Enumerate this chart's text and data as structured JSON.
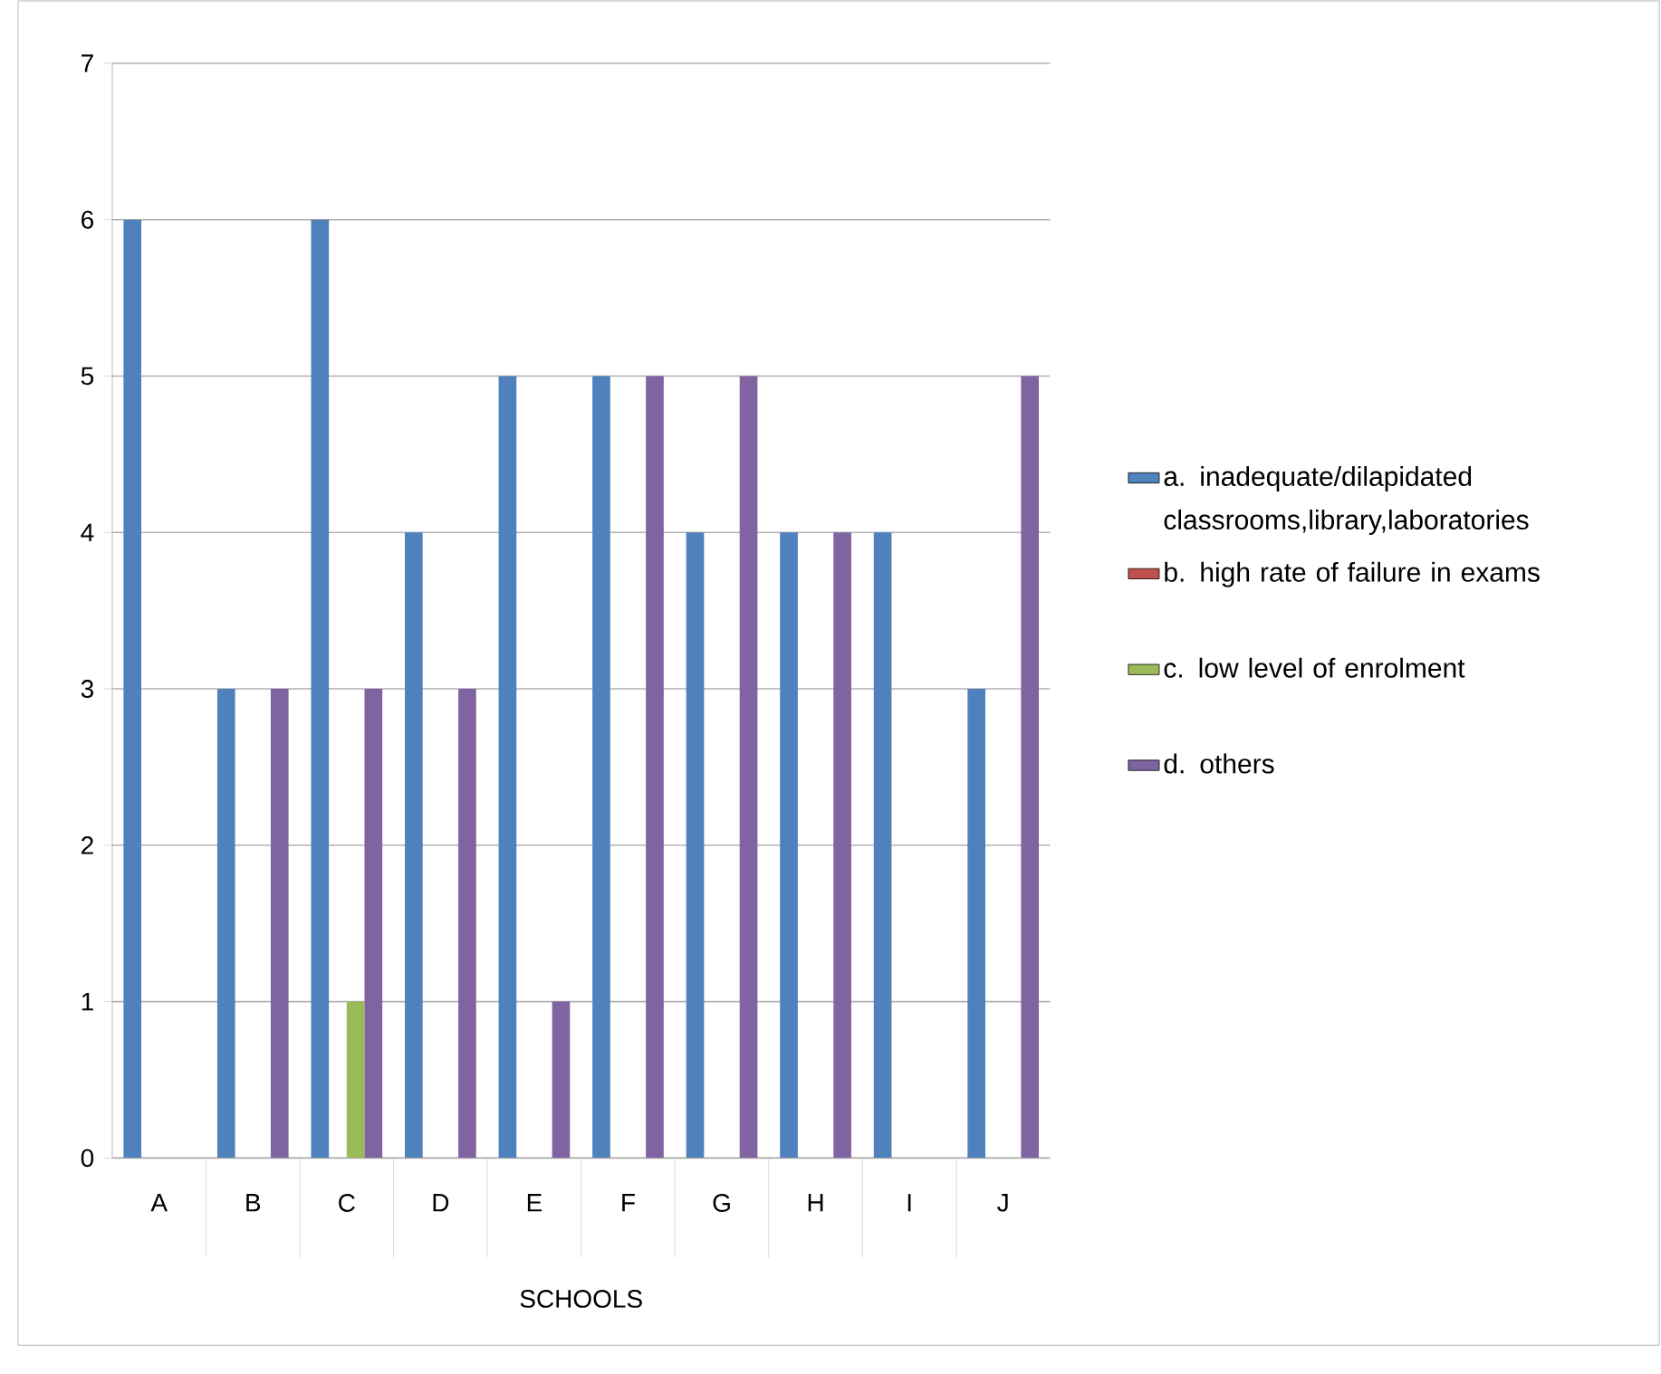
{
  "chart_data": {
    "type": "bar",
    "xlabel": "SCHOOLS",
    "categories": [
      "A",
      "B",
      "C",
      "D",
      "E",
      "F",
      "G",
      "H",
      "I",
      "J"
    ],
    "series": [
      {
        "name": "a. inadequate/dilapidated classrooms,library,laboratories",
        "color": "#4f81bd",
        "values": [
          6,
          3,
          6,
          4,
          5,
          5,
          4,
          4,
          4,
          3
        ]
      },
      {
        "name": "b. high rate of failure in exams",
        "color": "#c0504d",
        "values": [
          0,
          0,
          0,
          0,
          0,
          0,
          0,
          0,
          0,
          0
        ]
      },
      {
        "name": "c. low level of enrolment",
        "color": "#9bbb59",
        "values": [
          0,
          0,
          1,
          0,
          0,
          0,
          0,
          0,
          0,
          0
        ]
      },
      {
        "name": "d. others",
        "color": "#8064a2",
        "values": [
          0,
          3,
          3,
          3,
          1,
          5,
          5,
          4,
          0,
          5
        ]
      }
    ],
    "ylim": [
      0,
      7
    ],
    "yticks": [
      0,
      1,
      2,
      3,
      4,
      5,
      6,
      7
    ],
    "grid": "y",
    "legend": "right"
  }
}
